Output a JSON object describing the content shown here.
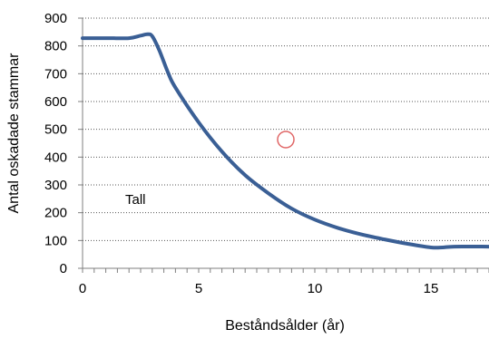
{
  "chart_data": {
    "type": "line",
    "title": "",
    "xlabel": "Beståndsålder (år)",
    "ylabel": "Antal oskadade stammar",
    "xlim": [
      0,
      17.5
    ],
    "ylim": [
      0,
      900
    ],
    "xticks": [
      0,
      5,
      10,
      15
    ],
    "yticks": [
      0,
      100,
      200,
      300,
      400,
      500,
      600,
      700,
      800,
      900
    ],
    "x_minor_step": 0.5,
    "grid": "horizontal dotted",
    "legend": "none",
    "annotation": "Tall",
    "series": [
      {
        "color": "#3A5F95",
        "x": [
          0,
          1,
          2,
          2.5,
          2.8,
          3.0,
          3.3,
          3.7,
          4.0,
          5.0,
          6.0,
          7.0,
          8.0,
          9.0,
          10.0,
          11.0,
          12.0,
          13.0,
          14.0,
          15.0,
          15.5,
          16.0,
          17.5
        ],
        "y": [
          828,
          828,
          828,
          837,
          842,
          835,
          785,
          700,
          650,
          525,
          420,
          335,
          270,
          215,
          175,
          145,
          122,
          104,
          88,
          75,
          75,
          78,
          78
        ]
      }
    ],
    "markers": [
      {
        "shape": "circle",
        "fill": "none",
        "color": "#E06666",
        "x": 8.75,
        "y": 463
      }
    ]
  }
}
